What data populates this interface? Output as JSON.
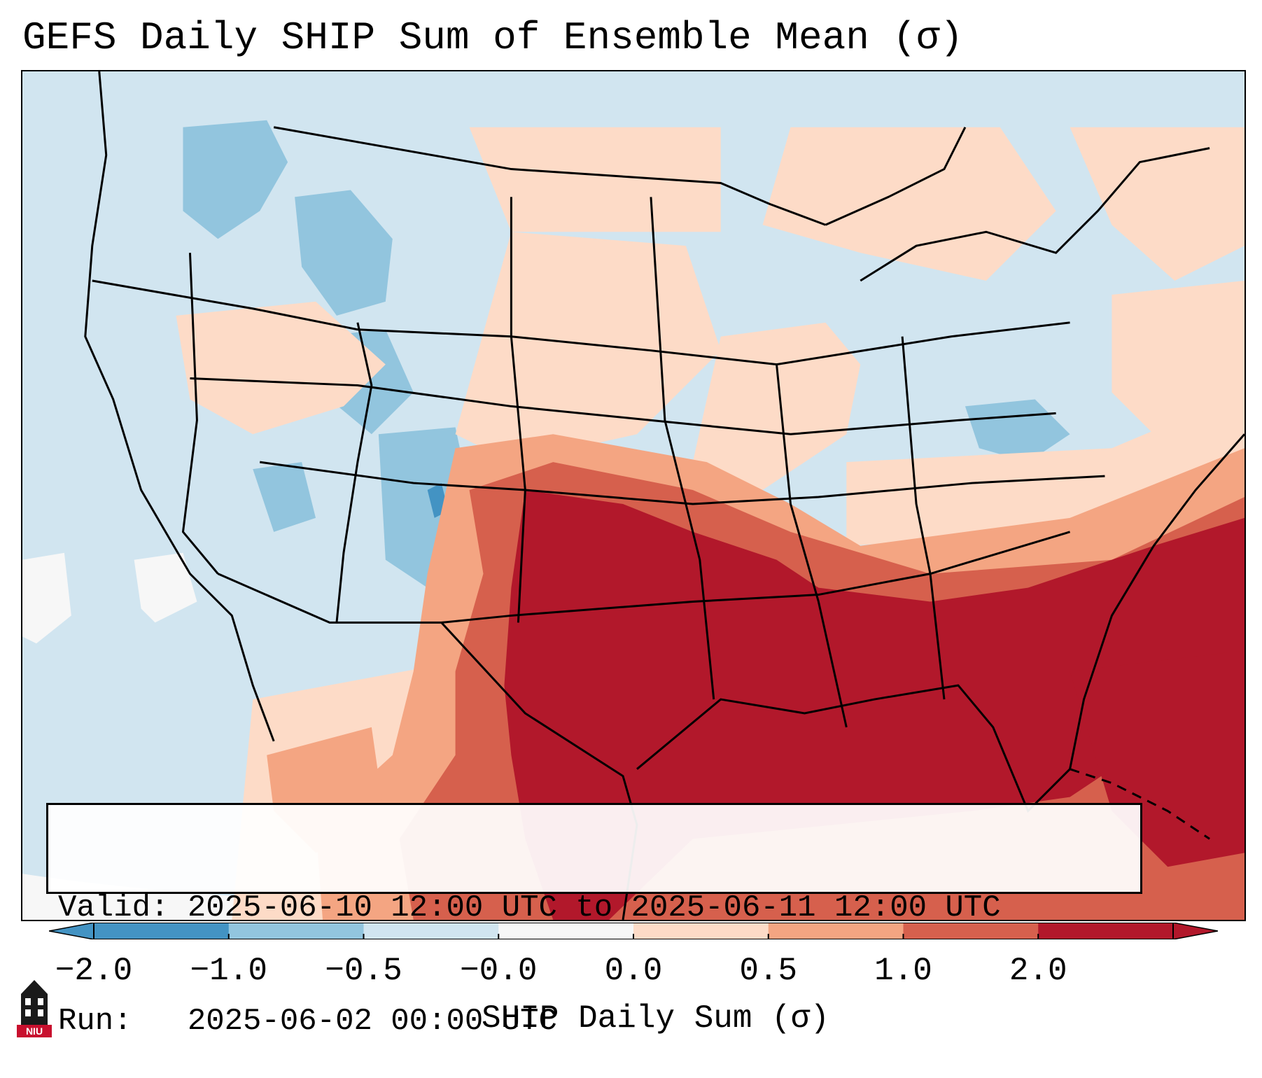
{
  "title": "GEFS Daily SHIP Sum of Ensemble Mean (σ)",
  "info": {
    "valid_line": "Valid: 2025-06-10 12:00 UTC to 2025-06-11 12:00 UTC",
    "run_line": "Run:   2025-06-02 00:00 UTC"
  },
  "colorbar": {
    "label": "SHIP Daily Sum (σ)",
    "ticks": [
      "−2.0",
      "−1.0",
      "−0.5",
      "−0.0",
      "0.0",
      "0.5",
      "1.0",
      "2.0"
    ],
    "colors": [
      "#4393c3",
      "#92c5de",
      "#d1e5f0",
      "#f7f7f7",
      "#fddbc7",
      "#f4a582",
      "#d6604d",
      "#b2182b"
    ],
    "extend": "both"
  },
  "map": {
    "region": "CONUS",
    "dominant_high_region": "Southern Plains to Southeast",
    "colors": {
      "very_low": "#4393c3",
      "low": "#92c5de",
      "slightly_low": "#d1e5f0",
      "near_zero": "#f7f7f7",
      "slightly_high": "#fddbc7",
      "moderate": "#f4a582",
      "high": "#d6604d",
      "very_high": "#b2182b"
    }
  },
  "logo": {
    "text": "NIU",
    "icon": "niu-tower-icon"
  }
}
